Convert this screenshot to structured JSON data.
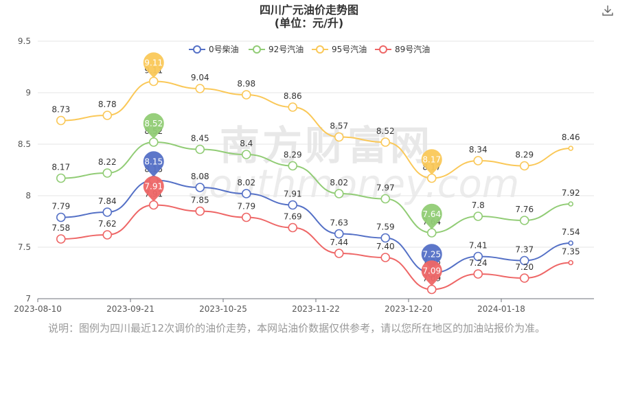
{
  "title_line1": "四川广元油价走势图",
  "title_line2": "(单位：元/升)",
  "note": "说明：图例为四川最近12次调价的油价走势，本网站油价数据仅供参考，请以您所在地区的加油站报价为准。",
  "watermark": {
    "cn": "南方财富网",
    "en": "southmoney.com"
  },
  "chart_data": {
    "type": "line",
    "title": "四川广元油价走势图 (单位：元/升)",
    "x_ticks": [
      "2023-08-10",
      "2023-09-21",
      "2023-10-25",
      "2023-11-22",
      "2023-12-20",
      "2024-01-18"
    ],
    "ylim": [
      7,
      9.5
    ],
    "y_ticks": [
      "7",
      "7.5",
      "8",
      "8.5",
      "9",
      "9.5"
    ],
    "legend_position": "top-center",
    "series": [
      {
        "name": "0号柴油",
        "color": "#5470c6",
        "values": [
          "7.79",
          "7.84",
          "8.15",
          "8.08",
          "8.02",
          "7.91",
          "7.63",
          "7.59",
          "7.25",
          "7.41",
          "7.37",
          "7.54"
        ],
        "highlights": [
          {
            "index": 2,
            "value": "8.15"
          },
          {
            "index": 8,
            "value": "7.25"
          }
        ]
      },
      {
        "name": "92号汽油",
        "color": "#91cc75",
        "values": [
          "8.17",
          "8.22",
          "8.52",
          "8.45",
          "8.4",
          "8.29",
          "8.02",
          "7.97",
          "7.64",
          "7.8",
          "7.76",
          "7.92"
        ],
        "highlights": [
          {
            "index": 2,
            "value": "8.52"
          },
          {
            "index": 8,
            "value": "7.64"
          }
        ]
      },
      {
        "name": "95号汽油",
        "color": "#fac858",
        "values": [
          "8.73",
          "8.78",
          "9.11",
          "9.04",
          "8.98",
          "8.86",
          "8.57",
          "8.52",
          "8.17",
          "8.34",
          "8.29",
          "8.46"
        ],
        "highlights": [
          {
            "index": 2,
            "value": "9.11"
          },
          {
            "index": 8,
            "value": "8.17"
          }
        ]
      },
      {
        "name": "89号汽油",
        "color": "#ee6666",
        "values": [
          "7.58",
          "7.62",
          "7.91",
          "7.85",
          "7.79",
          "7.69",
          "7.44",
          "7.40",
          "7.09",
          "7.24",
          "7.20",
          "7.35"
        ],
        "highlights": [
          {
            "index": 2,
            "value": "7.91"
          },
          {
            "index": 8,
            "value": "7.09"
          }
        ]
      }
    ]
  }
}
